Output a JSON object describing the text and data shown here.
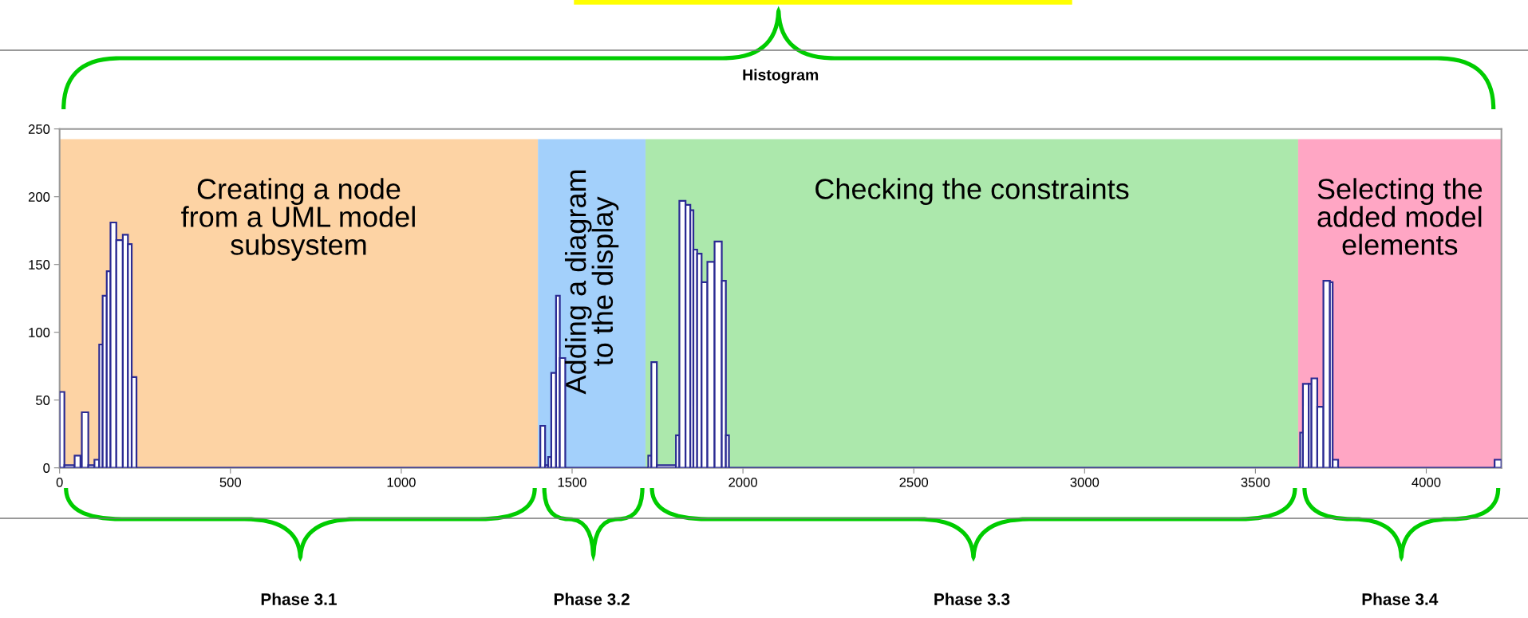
{
  "chart_data": {
    "type": "histogram",
    "title": "Histogram",
    "bins": [
      0,
      14,
      44,
      61,
      65,
      84,
      102,
      116,
      126,
      138,
      149,
      166,
      185,
      200,
      211,
      225,
      1407,
      1421,
      1430,
      1439,
      1453,
      1464,
      1480,
      1723,
      1732,
      1748,
      1804,
      1814,
      1832,
      1846,
      1855,
      1866,
      1879,
      1896,
      1917,
      1938,
      1950,
      1959,
      3631,
      3639,
      3656,
      3664,
      3681,
      3699,
      3718,
      3726,
      3742,
      4200,
      4220
    ],
    "values": [
      56,
      2,
      9,
      0,
      41,
      2,
      6,
      91,
      127,
      145,
      181,
      168,
      172,
      165,
      67,
      0,
      31,
      2,
      8,
      70,
      127,
      81,
      0,
      9,
      78,
      2,
      24,
      197,
      194,
      190,
      161,
      158,
      137,
      152,
      167,
      138,
      24,
      0,
      26,
      62,
      62,
      66,
      45,
      138,
      137,
      6,
      0,
      6
    ],
    "color": "#2b2b93",
    "xlim": [
      0,
      4220
    ],
    "ylim": [
      0,
      250
    ],
    "xticks": [
      0,
      500,
      1000,
      1500,
      2000,
      2500,
      3000,
      3500,
      4000
    ],
    "yticks": [
      0,
      50,
      100,
      150,
      200,
      250
    ],
    "grid": false,
    "legend": false,
    "bands": [
      {
        "axis": "x",
        "from": 0,
        "to": 1400,
        "label": "Creating a node\nfrom a UML model\nsubsystem",
        "color": "#fdd3a4"
      },
      {
        "axis": "x",
        "from": 1400,
        "to": 1715,
        "label": "Adding a diagram\nto the display",
        "color": "#a3d0fb"
      },
      {
        "axis": "x",
        "from": 1715,
        "to": 3625,
        "label": "Checking the constraints",
        "color": "#ace8ac"
      },
      {
        "axis": "x",
        "from": 3625,
        "to": 4220,
        "label": "Selecting the\nadded model\nelements",
        "color": "#ffa6c4"
      }
    ],
    "annotations": [
      "Phase 3.1",
      "Phase 3.2",
      "Phase 3.3",
      "Phase 3.4"
    ]
  }
}
